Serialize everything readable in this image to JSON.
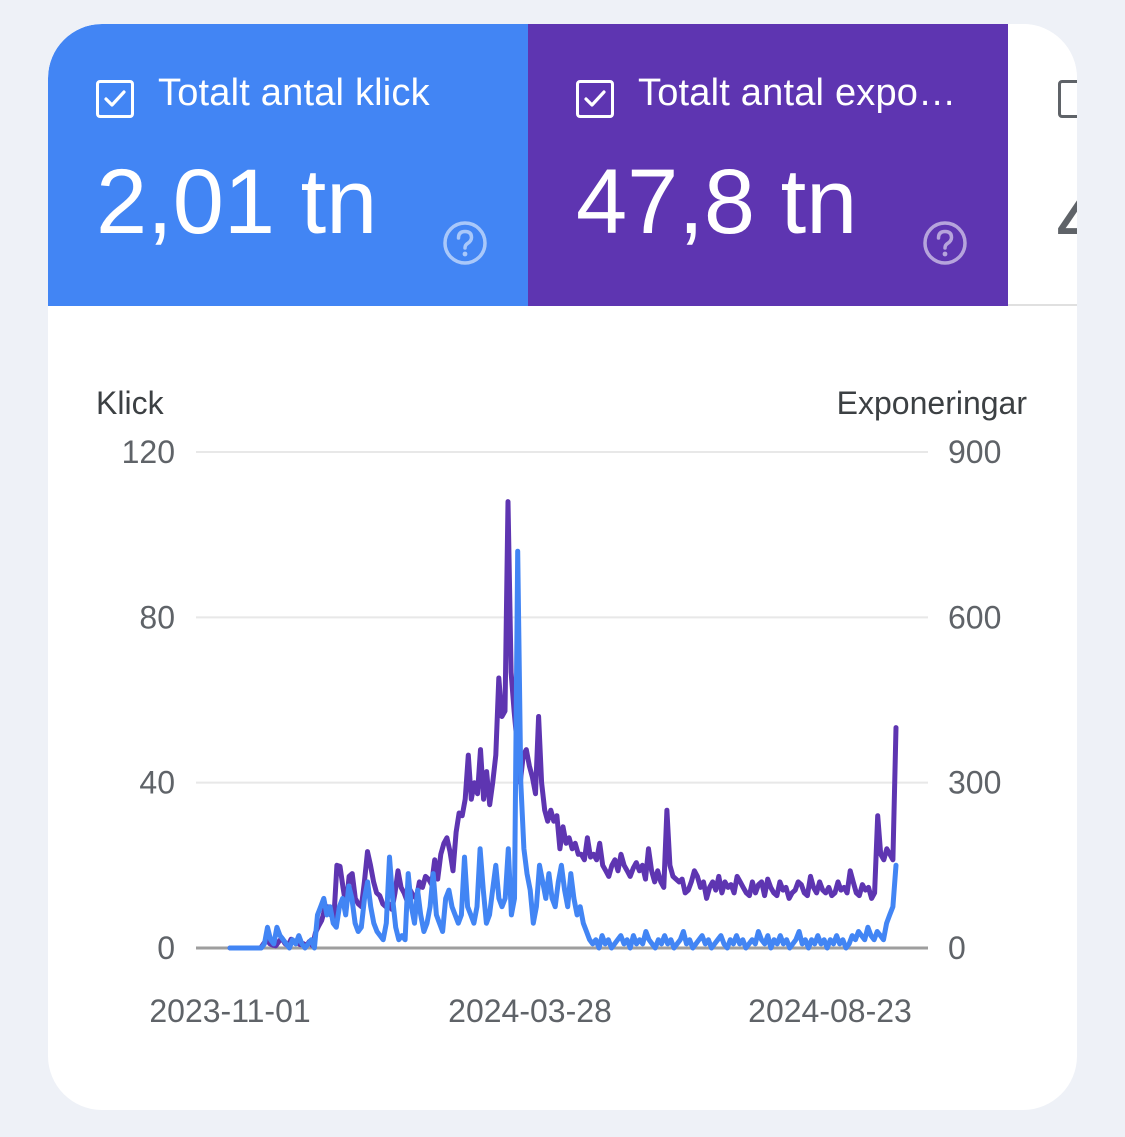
{
  "metrics": {
    "clicks": {
      "label": "Totalt antal klick",
      "value": "2,01 tn",
      "color": "#4285f4",
      "checked": true
    },
    "impressions": {
      "label": "Totalt antal expo…",
      "value": "47,8 tn",
      "color": "#5e35b1",
      "checked": true
    },
    "ctr": {
      "checked": false
    }
  },
  "chart_data": {
    "type": "line",
    "y_left_label": "Klick",
    "y_right_label": "Exponeringar",
    "y_left_ticks": [
      "120",
      "80",
      "40",
      "0"
    ],
    "y_right_ticks": [
      "900",
      "600",
      "300",
      "0"
    ],
    "y_left_range": [
      0,
      120
    ],
    "y_right_range": [
      0,
      900
    ],
    "x_ticks": [
      "2023-11-01",
      "2024-03-28",
      "2024-08-23"
    ],
    "grid": true,
    "series": [
      {
        "axis": "right",
        "color": "#5e35b1",
        "values": [
          0,
          0,
          0,
          0,
          0,
          0,
          0,
          0,
          0,
          0,
          0,
          8,
          16,
          8,
          5,
          4,
          12,
          18,
          8,
          4,
          16,
          12,
          10,
          6,
          8,
          4,
          12,
          4,
          28,
          40,
          50,
          70,
          75,
          60,
          55,
          150,
          148,
          110,
          75,
          130,
          135,
          90,
          80,
          75,
          120,
          175,
          150,
          120,
          100,
          95,
          80,
          75,
          80,
          70,
          100,
          140,
          110,
          100,
          85,
          105,
          95,
          90,
          120,
          110,
          130,
          125,
          115,
          160,
          125,
          170,
          190,
          200,
          175,
          140,
          210,
          245,
          240,
          270,
          350,
          270,
          300,
          280,
          360,
          270,
          320,
          260,
          300,
          350,
          490,
          420,
          430,
          810,
          500,
          430,
          370,
          300,
          350,
          360,
          330,
          310,
          280,
          420,
          300,
          250,
          230,
          250,
          230,
          240,
          180,
          220,
          190,
          200,
          180,
          190,
          170,
          170,
          160,
          200,
          165,
          170,
          160,
          190,
          150,
          140,
          130,
          150,
          160,
          140,
          170,
          150,
          140,
          130,
          145,
          155,
          140,
          150,
          125,
          180,
          140,
          120,
          140,
          120,
          110,
          250,
          150,
          130,
          125,
          120,
          125,
          100,
          105,
          120,
          140,
          130,
          110,
          120,
          90,
          110,
          120,
          105,
          130,
          100,
          120,
          110,
          115,
          100,
          130,
          120,
          110,
          100,
          95,
          120,
          100,
          115,
          120,
          95,
          125,
          110,
          100,
          95,
          120,
          105,
          110,
          90,
          100,
          105,
          120,
          115,
          100,
          95,
          130,
          110,
          100,
          120,
          105,
          100,
          110,
          95,
          100,
          120,
          105,
          110,
          100,
          140,
          120,
          100,
          95,
          115,
          105,
          110,
          90,
          100,
          240,
          170,
          160,
          180,
          170,
          160,
          400
        ]
      },
      {
        "axis": "left",
        "color": "#4285f4",
        "values": [
          0,
          0,
          0,
          0,
          0,
          0,
          0,
          0,
          0,
          0,
          0,
          1,
          5,
          2,
          1,
          5,
          3,
          2,
          1,
          0,
          2,
          1,
          3,
          1,
          0,
          1,
          2,
          0,
          8,
          10,
          12,
          8,
          10,
          6,
          5,
          10,
          12,
          8,
          15,
          12,
          6,
          4,
          5,
          12,
          16,
          10,
          6,
          4,
          3,
          2,
          6,
          22,
          12,
          5,
          2,
          3,
          2,
          18,
          10,
          6,
          14,
          8,
          4,
          6,
          10,
          18,
          8,
          6,
          4,
          12,
          14,
          10,
          8,
          6,
          8,
          22,
          10,
          8,
          6,
          10,
          24,
          14,
          6,
          8,
          14,
          20,
          12,
          10,
          12,
          24,
          8,
          12,
          96,
          40,
          24,
          18,
          14,
          6,
          10,
          20,
          16,
          12,
          18,
          12,
          10,
          16,
          20,
          14,
          10,
          18,
          12,
          8,
          10,
          6,
          4,
          2,
          1,
          2,
          0,
          3,
          1,
          2,
          0,
          1,
          2,
          3,
          1,
          2,
          0,
          3,
          1,
          2,
          1,
          4,
          2,
          1,
          0,
          2,
          1,
          3,
          1,
          2,
          0,
          1,
          2,
          4,
          1,
          2,
          0,
          1,
          2,
          3,
          1,
          2,
          0,
          1,
          2,
          3,
          1,
          0,
          2,
          1,
          3,
          1,
          2,
          0,
          1,
          2,
          1,
          4,
          2,
          1,
          3,
          0,
          2,
          1,
          3,
          1,
          2,
          0,
          1,
          2,
          4,
          1,
          2,
          0,
          2,
          1,
          3,
          1,
          2,
          0,
          2,
          1,
          3,
          1,
          2,
          0,
          1,
          3,
          2,
          4,
          3,
          2,
          5,
          3,
          2,
          4,
          3,
          2,
          6,
          8,
          10,
          20
        ]
      }
    ]
  }
}
